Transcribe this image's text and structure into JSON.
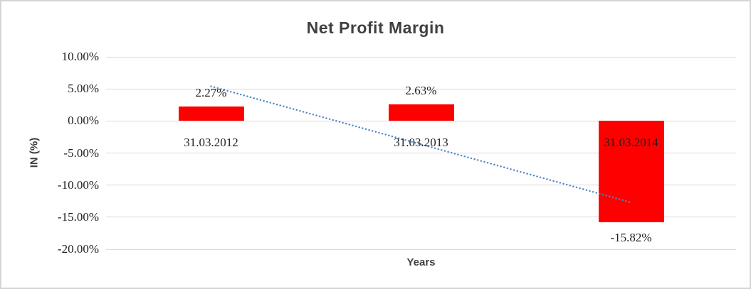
{
  "chart_data": {
    "type": "bar",
    "title": "Net Profit Margin",
    "xlabel": "Years",
    "ylabel": "IN (%)",
    "categories": [
      "31.03.2012",
      "31.03.2013",
      "31.03.2014"
    ],
    "values": [
      2.27,
      2.63,
      -15.82
    ],
    "data_labels": [
      "2.27%",
      "2.63%",
      "-15.82%"
    ],
    "ylim": [
      -20,
      10
    ],
    "yticks": [
      10,
      5,
      0,
      -5,
      -10,
      -15,
      -20
    ],
    "ytick_labels": [
      "10.00%",
      "5.00%",
      "0.00%",
      "-5.00%",
      "-10.00%",
      "-15.00%",
      "-20.00%"
    ],
    "grid": true,
    "legend": "none",
    "bar_color": "#ff0000",
    "gridline_color": "#d9d9d9",
    "text_color": "#1f1f1f",
    "title_color": "#404040",
    "trendline": {
      "type": "linear",
      "style": "dotted",
      "color": "#4f86c6",
      "start_value": 5.4,
      "end_value": -12.7
    }
  }
}
